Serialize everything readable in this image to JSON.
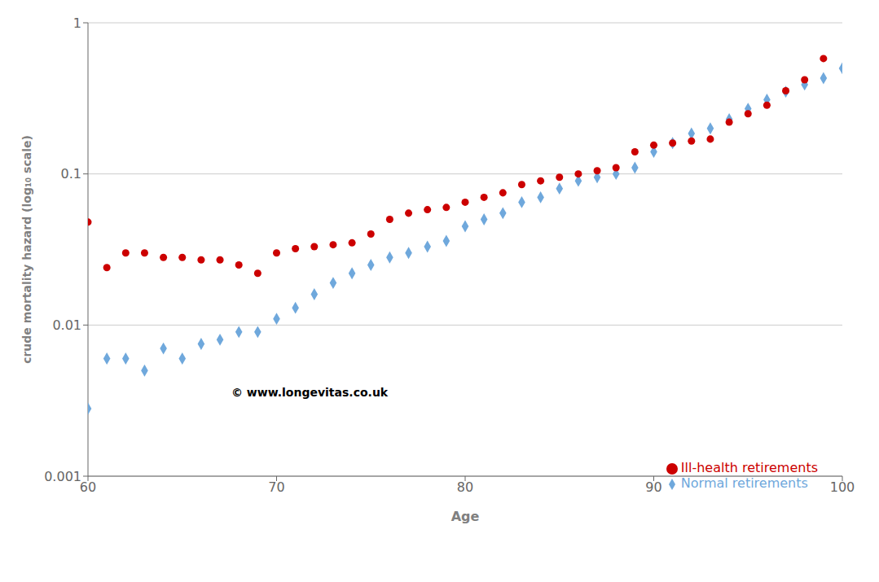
{
  "chart_data": {
    "type": "scatter",
    "xlabel": "Age",
    "ylabel": "crude mortality hazard (log₁₀ scale)",
    "xlim": [
      60,
      100
    ],
    "xticks": [
      60,
      70,
      80,
      90,
      100
    ],
    "ylim": [
      0.001,
      1
    ],
    "yticks": [
      0.001,
      0.01,
      0.1,
      1
    ],
    "log": "y",
    "grid": true,
    "legend": "lower right",
    "annotations": [
      "© www.longevitas.co.uk"
    ],
    "series": [
      {
        "name": "Normal retirements",
        "color": "#6fa8dc",
        "marker": "diamond",
        "x": [
          60,
          61,
          62,
          63,
          64,
          65,
          66,
          67,
          68,
          69,
          70,
          71,
          72,
          73,
          74,
          75,
          76,
          77,
          78,
          79,
          80,
          81,
          82,
          83,
          84,
          85,
          86,
          87,
          88,
          89,
          90,
          91,
          92,
          93,
          94,
          95,
          96,
          97,
          98,
          99,
          100
        ],
        "values": [
          0.0028,
          0.006,
          0.006,
          0.005,
          0.007,
          0.006,
          0.0075,
          0.008,
          0.009,
          0.009,
          0.011,
          0.013,
          0.016,
          0.019,
          0.022,
          0.025,
          0.028,
          0.03,
          0.033,
          0.036,
          0.045,
          0.05,
          0.055,
          0.065,
          0.07,
          0.08,
          0.09,
          0.095,
          0.1,
          0.11,
          0.14,
          0.16,
          0.185,
          0.2,
          0.23,
          0.27,
          0.31,
          0.35,
          0.39,
          0.43,
          0.5
        ]
      },
      {
        "name": "Ill-health retirements",
        "color": "#cc0000",
        "marker": "circle",
        "x": [
          60,
          61,
          62,
          63,
          64,
          65,
          66,
          67,
          68,
          69,
          70,
          71,
          72,
          73,
          74,
          75,
          76,
          77,
          78,
          79,
          80,
          81,
          82,
          83,
          84,
          85,
          86,
          87,
          88,
          89,
          90,
          91,
          92,
          93,
          94,
          95,
          96,
          97,
          98,
          99
        ],
        "values": [
          0.048,
          0.024,
          0.03,
          0.03,
          0.028,
          0.028,
          0.027,
          0.027,
          0.025,
          0.022,
          0.03,
          0.032,
          0.033,
          0.034,
          0.035,
          0.04,
          0.05,
          0.055,
          0.058,
          0.06,
          0.065,
          0.07,
          0.075,
          0.085,
          0.09,
          0.095,
          0.1,
          0.105,
          0.11,
          0.14,
          0.155,
          0.16,
          0.165,
          0.17,
          0.22,
          0.25,
          0.285,
          0.355,
          0.42,
          0.58
        ]
      }
    ]
  }
}
